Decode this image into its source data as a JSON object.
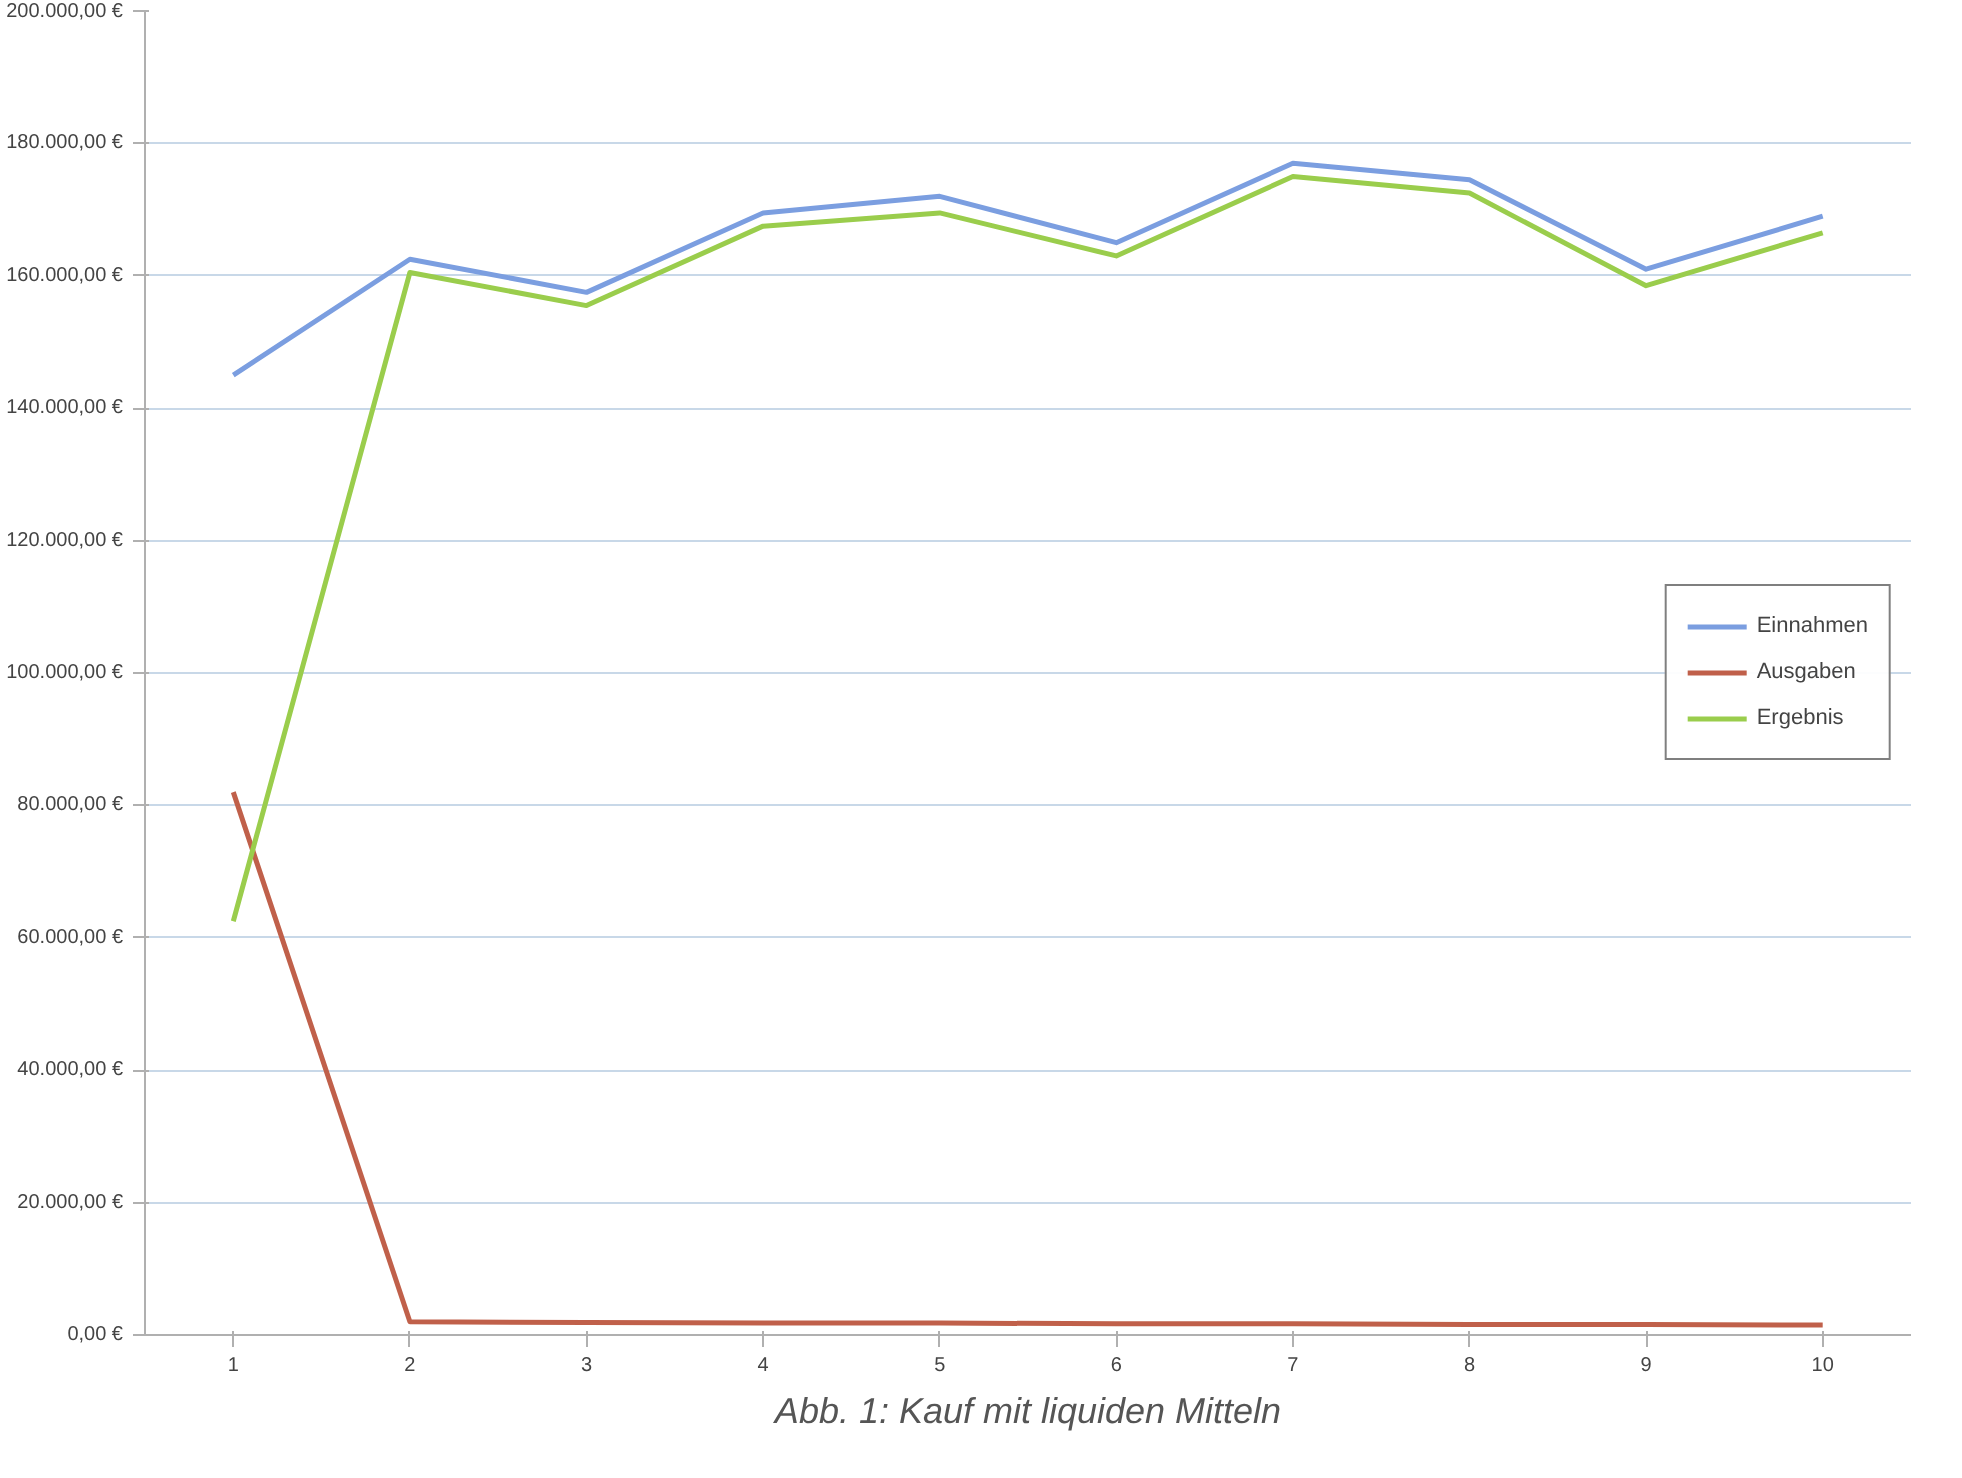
{
  "chart_data": {
    "type": "line",
    "annotations": [
      "Abb. 1: Kauf mit liquiden Mitteln"
    ],
    "categories": [
      "1",
      "2",
      "3",
      "4",
      "5",
      "6",
      "7",
      "8",
      "9",
      "10"
    ],
    "series": [
      {
        "name": "Einnahmen",
        "color": "#7b9ee0",
        "values": [
          145000,
          162500,
          157500,
          169500,
          172000,
          165000,
          177000,
          174500,
          161000,
          169000
        ]
      },
      {
        "name": "Ausgaben",
        "color": "#c0604a",
        "values": [
          82000,
          2000,
          1900,
          1800,
          1800,
          1700,
          1700,
          1600,
          1600,
          1500
        ]
      },
      {
        "name": "Ergebnis",
        "color": "#9acd4c",
        "values": [
          62500,
          160500,
          155500,
          167500,
          169500,
          163000,
          175000,
          172500,
          158500,
          166500
        ]
      }
    ],
    "ylim": [
      0,
      200000
    ],
    "yticks": [
      {
        "value": 0,
        "label": "0,00 €"
      },
      {
        "value": 20000,
        "label": "20.000,00 €"
      },
      {
        "value": 40000,
        "label": "40.000,00 €"
      },
      {
        "value": 60000,
        "label": "60.000,00 €"
      },
      {
        "value": 80000,
        "label": "80.000,00 €"
      },
      {
        "value": 100000,
        "label": "100.000,00 €"
      },
      {
        "value": 120000,
        "label": "120.000,00 €"
      },
      {
        "value": 140000,
        "label": "140.000,00 €"
      },
      {
        "value": 160000,
        "label": "160.000,00 €"
      },
      {
        "value": 180000,
        "label": "180.000,00 €"
      },
      {
        "value": 200000,
        "label": "200.000,00 €"
      }
    ],
    "grid": "y",
    "legend": "right",
    "marker": "none",
    "line_style": "solid"
  }
}
